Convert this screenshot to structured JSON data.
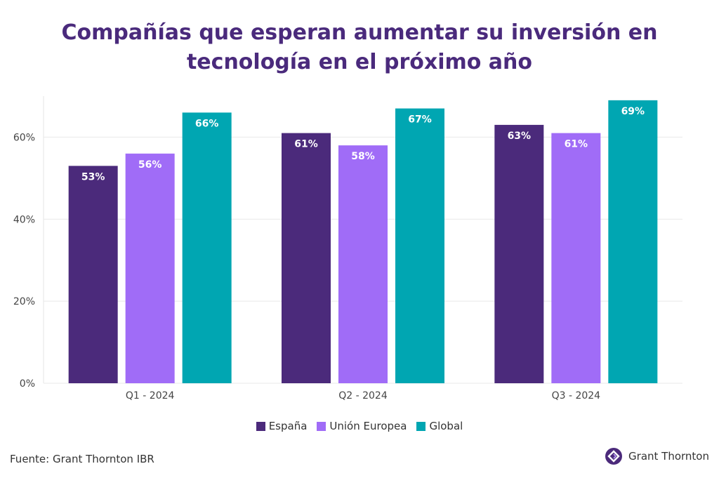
{
  "chart_data": {
    "type": "bar",
    "title_lines": [
      "Compañías que esperan aumentar su inversión en",
      "tecnología en el próximo año"
    ],
    "categories": [
      "Q1 - 2024",
      "Q2 - 2024",
      "Q3 - 2024"
    ],
    "series": [
      {
        "name": "España",
        "color": "#4b2a7b",
        "values": [
          53,
          61,
          63
        ],
        "labels": [
          "53%",
          "61%",
          "63%"
        ]
      },
      {
        "name": "Unión Europea",
        "color": "#a06cf7",
        "values": [
          56,
          58,
          61
        ],
        "labels": [
          "56%",
          "58%",
          "61%"
        ]
      },
      {
        "name": "Global",
        "color": "#00a6b2",
        "values": [
          66,
          67,
          69
        ],
        "labels": [
          "66%",
          "67%",
          "69%"
        ]
      }
    ],
    "yticks": [
      0,
      20,
      40,
      60
    ],
    "ytick_labels": [
      "0%",
      "20%",
      "40%",
      "60%"
    ],
    "ylim": [
      0,
      70
    ],
    "grid": true,
    "legend_position": "bottom"
  },
  "source": "Fuente: Grant Thornton IBR",
  "logo_text": "Grant Thornton",
  "logo_color": "#4b2a7b"
}
